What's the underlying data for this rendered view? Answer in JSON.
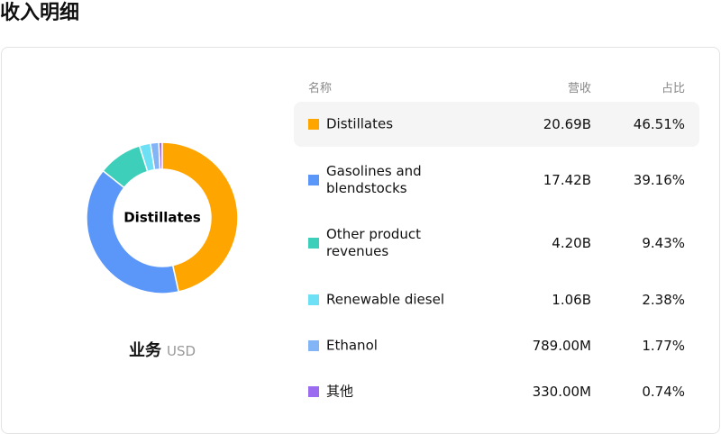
{
  "header": {
    "title": "收入明细"
  },
  "chart_data": {
    "type": "pie",
    "center_label": "Distillates",
    "caption": "业务",
    "unit": "USD",
    "categories": [
      "Distillates",
      "Gasolines and blendstocks",
      "Other product revenues",
      "Renewable diesel",
      "Ethanol",
      "其他"
    ],
    "values": [
      46.51,
      39.16,
      9.43,
      2.38,
      1.77,
      0.74
    ],
    "value_labels": [
      "46.51%",
      "39.16%",
      "9.43%",
      "2.38%",
      "1.77%",
      "0.74%"
    ],
    "colors": [
      "#ffa500",
      "#5b97f8",
      "#3ecfba",
      "#6de0f5",
      "#82b4f6",
      "#9b6cf0"
    ]
  },
  "table": {
    "columns": [
      "名称",
      "营收",
      "占比"
    ],
    "revenue": [
      "20.69B",
      "17.42B",
      "4.20B",
      "1.06B",
      "789.00M",
      "330.00M"
    ]
  }
}
